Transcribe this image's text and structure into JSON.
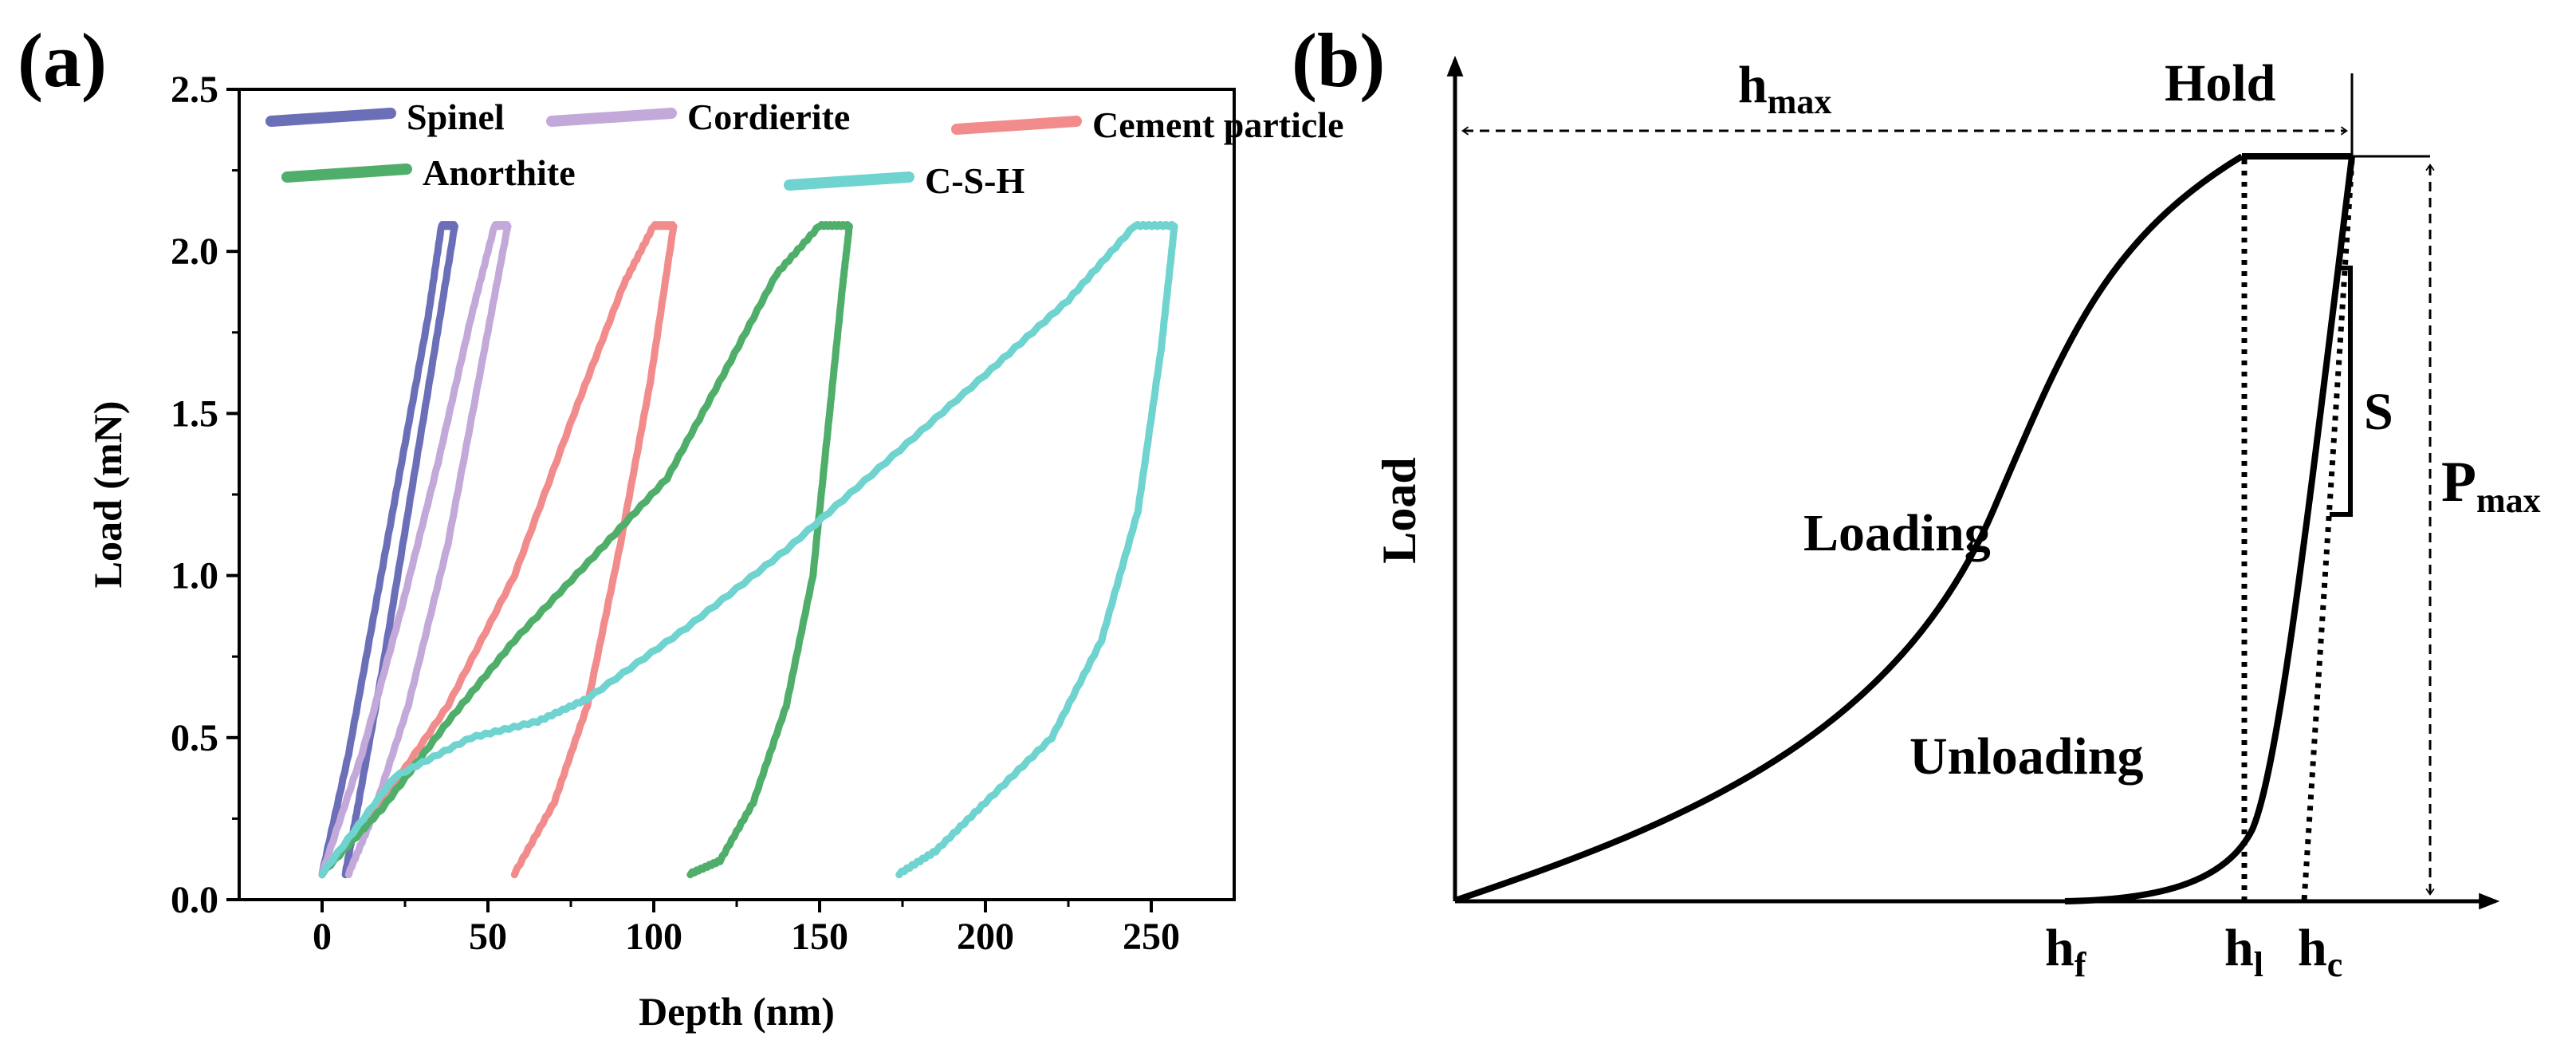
{
  "panels": {
    "a_label": "(a)",
    "b_label": "(b)"
  },
  "chart_data": [
    {
      "type": "line",
      "title": "",
      "xlabel": "Depth (nm)",
      "ylabel": "Load (mN)",
      "xlim": [
        -25,
        275
      ],
      "ylim": [
        0,
        2.5
      ],
      "xticks": [
        0,
        50,
        100,
        150,
        200,
        250
      ],
      "yticks": [
        0.0,
        0.5,
        1.0,
        1.5,
        2.0,
        2.5
      ],
      "xtick_labels": [
        "0",
        "50",
        "100",
        "150",
        "200",
        "250"
      ],
      "ytick_labels": [
        "0.0",
        "0.5",
        "1.0",
        "1.5",
        "2.0",
        "2.5"
      ],
      "legend_position": "top",
      "series": [
        {
          "name": "Spinel",
          "color": "#6b6fb8",
          "loading": [
            [
              0,
              0.08
            ],
            [
              8,
              0.45
            ],
            [
              16,
              0.9
            ],
            [
              24,
              1.35
            ],
            [
              32,
              1.8
            ],
            [
              36,
              2.08
            ]
          ],
          "hold": [
            [
              36,
              2.08
            ],
            [
              40,
              2.08
            ]
          ],
          "unloading": [
            [
              40,
              2.08
            ],
            [
              34,
              1.7
            ],
            [
              26,
              1.2
            ],
            [
              18,
              0.7
            ],
            [
              11,
              0.3
            ],
            [
              7,
              0.08
            ]
          ]
        },
        {
          "name": "Cordierite",
          "color": "#c3a9d9",
          "loading": [
            [
              0,
              0.08
            ],
            [
              12,
              0.45
            ],
            [
              24,
              0.9
            ],
            [
              35,
              1.35
            ],
            [
              45,
              1.8
            ],
            [
              52,
              2.08
            ]
          ],
          "hold": [
            [
              52,
              2.08
            ],
            [
              56,
              2.08
            ]
          ],
          "unloading": [
            [
              56,
              2.08
            ],
            [
              49,
              1.7
            ],
            [
              38,
              1.1
            ],
            [
              26,
              0.6
            ],
            [
              15,
              0.25
            ],
            [
              8,
              0.08
            ]
          ]
        },
        {
          "name": "Cement particle",
          "color": "#f28b8b",
          "loading": [
            [
              0,
              0.08
            ],
            [
              18,
              0.3
            ],
            [
              38,
              0.6
            ],
            [
              58,
              1.0
            ],
            [
              76,
              1.5
            ],
            [
              91,
              1.9
            ],
            [
              100,
              2.08
            ]
          ],
          "hold": [
            [
              100,
              2.08
            ],
            [
              106,
              2.08
            ]
          ],
          "unloading": [
            [
              106,
              2.08
            ],
            [
              99,
              1.6
            ],
            [
              90,
              1.1
            ],
            [
              80,
              0.6
            ],
            [
              70,
              0.3
            ],
            [
              58,
              0.08
            ]
          ]
        },
        {
          "name": "Anorthite",
          "color": "#4fae6a",
          "loading": [
            [
              0,
              0.08
            ],
            [
              18,
              0.28
            ],
            [
              38,
              0.55
            ],
            [
              58,
              0.8
            ],
            [
              82,
              1.06
            ],
            [
              104,
              1.3
            ],
            [
              121,
              1.62
            ],
            [
              137,
              1.93
            ],
            [
              150,
              2.08
            ]
          ],
          "hold": [
            [
              150,
              2.08
            ],
            [
              159,
              2.08
            ]
          ],
          "unloading": [
            [
              159,
              2.08
            ],
            [
              157,
              1.9
            ],
            [
              153,
              1.5
            ],
            [
              148,
              1.0
            ],
            [
              140,
              0.6
            ],
            [
              130,
              0.3
            ],
            [
              120,
              0.12
            ],
            [
              111,
              0.08
            ]
          ]
        },
        {
          "name": "C-S-H",
          "color": "#6fd3cf",
          "loading": [
            [
              0,
              0.08
            ],
            [
              22,
              0.38
            ],
            [
              45,
              0.5
            ],
            [
              65,
              0.55
            ],
            [
              80,
              0.62
            ],
            [
              110,
              0.84
            ],
            [
              140,
              1.08
            ],
            [
              170,
              1.35
            ],
            [
              200,
              1.62
            ],
            [
              225,
              1.85
            ],
            [
              245,
              2.08
            ]
          ],
          "hold": [
            [
              245,
              2.08
            ],
            [
              257,
              2.08
            ]
          ],
          "unloading": [
            [
              257,
              2.08
            ],
            [
              253,
              1.7
            ],
            [
              246,
              1.2
            ],
            [
              235,
              0.8
            ],
            [
              220,
              0.5
            ],
            [
              200,
              0.3
            ],
            [
              185,
              0.15
            ],
            [
              174,
              0.08
            ]
          ]
        }
      ]
    },
    {
      "type": "diagram",
      "xlabel": "",
      "ylabel": "Load",
      "labels": {
        "h_max": "h",
        "h_max_sub": "max",
        "hold": "Hold",
        "loading": "Loading",
        "unloading": "Unloading",
        "stiffness": "S",
        "p_max": "P",
        "p_max_sub": "max",
        "h_f": "h",
        "h_f_sub": "f",
        "h_l": "h",
        "h_l_sub": "l",
        "h_c": "h",
        "h_c_sub": "c"
      }
    }
  ]
}
